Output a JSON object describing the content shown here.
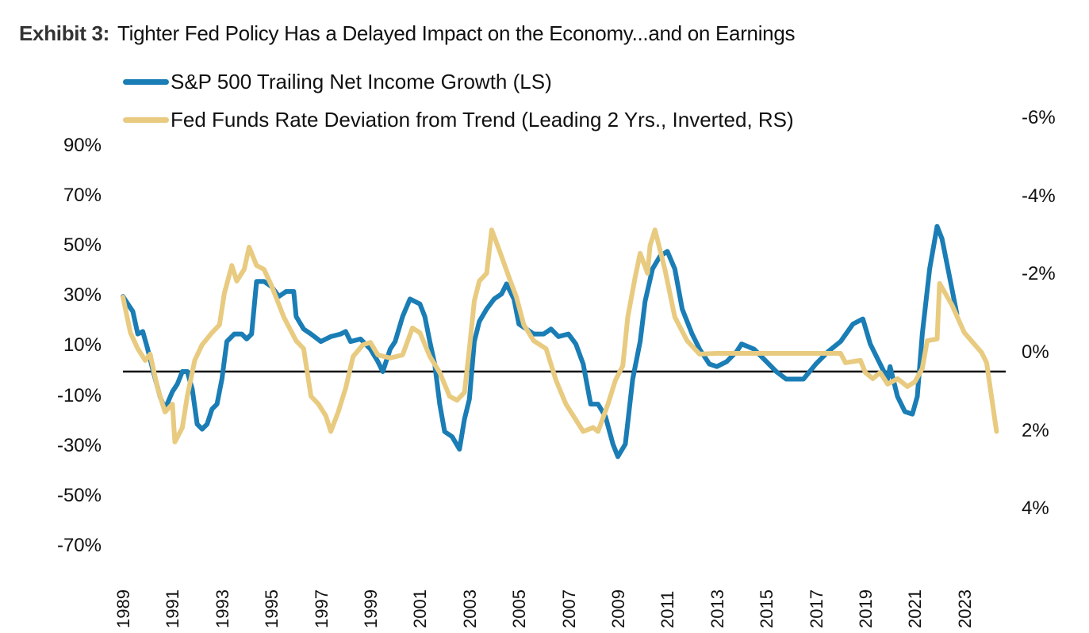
{
  "title": {
    "lead": "Exhibit 3:",
    "text": "Tighter Fed Policy Has a Delayed Impact on the Economy...and on Earnings"
  },
  "colors": {
    "series1": "#1a7db5",
    "series2": "#e8cb80",
    "zero_line": "#000000"
  },
  "chart_data": {
    "type": "line",
    "title": "Exhibit 3: Tighter Fed Policy Has a Delayed Impact on the Economy...and on Earnings",
    "xlabel": "",
    "ylabel_left": "",
    "ylabel_right": "",
    "x_ticks": [
      "1989",
      "1991",
      "1993",
      "1995",
      "1997",
      "1999",
      "2001",
      "2003",
      "2005",
      "2007",
      "2009",
      "2011",
      "2013",
      "2015",
      "2017",
      "2019",
      "2021",
      "2023"
    ],
    "xlim": [
      1989,
      2024.5
    ],
    "ylim_left": [
      -70,
      90
    ],
    "yticks_left": [
      "90%",
      "70%",
      "50%",
      "30%",
      "10%",
      "-10%",
      "-30%",
      "-50%",
      "-70%"
    ],
    "yticks_left_values": [
      90,
      70,
      50,
      30,
      10,
      -10,
      -30,
      -50,
      -70
    ],
    "ylim_right": [
      -6,
      4
    ],
    "right_axis_inverted": true,
    "yticks_right": [
      "-6%",
      "-4%",
      "-2%",
      "0%",
      "2%",
      "4%"
    ],
    "yticks_right_values": [
      -6,
      -4,
      -2,
      0,
      2,
      4
    ],
    "grid": false,
    "zero_line": true,
    "legend_position": "top",
    "series": [
      {
        "name": "S&P 500 Trailing Net Income Growth (LS)",
        "axis": "left",
        "points": [
          [
            1989.0,
            30
          ],
          [
            1989.2,
            27
          ],
          [
            1989.4,
            24
          ],
          [
            1989.6,
            15
          ],
          [
            1989.8,
            16
          ],
          [
            1990.0,
            9
          ],
          [
            1990.2,
            1
          ],
          [
            1990.5,
            -10
          ],
          [
            1990.7,
            -15
          ],
          [
            1991.0,
            -8
          ],
          [
            1991.2,
            -5
          ],
          [
            1991.4,
            0
          ],
          [
            1991.6,
            0
          ],
          [
            1991.8,
            -7
          ],
          [
            1992.0,
            -21
          ],
          [
            1992.2,
            -23
          ],
          [
            1992.4,
            -21
          ],
          [
            1992.6,
            -15
          ],
          [
            1992.8,
            -13
          ],
          [
            1993.0,
            -3
          ],
          [
            1993.2,
            12
          ],
          [
            1993.5,
            15
          ],
          [
            1993.8,
            15
          ],
          [
            1994.0,
            13
          ],
          [
            1994.2,
            15
          ],
          [
            1994.4,
            36
          ],
          [
            1994.7,
            36
          ],
          [
            1995.0,
            34
          ],
          [
            1995.3,
            30
          ],
          [
            1995.6,
            32
          ],
          [
            1995.9,
            32
          ],
          [
            1996.0,
            22
          ],
          [
            1996.3,
            17
          ],
          [
            1996.6,
            15
          ],
          [
            1997.0,
            12
          ],
          [
            1997.4,
            14
          ],
          [
            1997.8,
            15
          ],
          [
            1998.0,
            16
          ],
          [
            1998.2,
            12
          ],
          [
            1998.6,
            13
          ],
          [
            1999.0,
            9
          ],
          [
            1999.3,
            4
          ],
          [
            1999.5,
            0
          ],
          [
            1999.8,
            9
          ],
          [
            2000.0,
            12
          ],
          [
            2000.3,
            22
          ],
          [
            2000.6,
            29
          ],
          [
            2001.0,
            27
          ],
          [
            2001.2,
            22
          ],
          [
            2001.4,
            12
          ],
          [
            2001.6,
            3
          ],
          [
            2001.8,
            -13
          ],
          [
            2002.0,
            -24
          ],
          [
            2002.3,
            -26
          ],
          [
            2002.6,
            -31
          ],
          [
            2002.8,
            -19
          ],
          [
            2003.0,
            -11
          ],
          [
            2003.2,
            12
          ],
          [
            2003.4,
            20
          ],
          [
            2003.7,
            25
          ],
          [
            2004.0,
            29
          ],
          [
            2004.3,
            31
          ],
          [
            2004.5,
            35
          ],
          [
            2004.8,
            29
          ],
          [
            2005.0,
            19
          ],
          [
            2005.3,
            17
          ],
          [
            2005.6,
            15
          ],
          [
            2006.0,
            15
          ],
          [
            2006.3,
            17
          ],
          [
            2006.6,
            14
          ],
          [
            2007.0,
            15
          ],
          [
            2007.3,
            11
          ],
          [
            2007.6,
            3
          ],
          [
            2007.9,
            -13
          ],
          [
            2008.2,
            -13
          ],
          [
            2008.5,
            -18
          ],
          [
            2008.8,
            -29
          ],
          [
            2009.0,
            -34
          ],
          [
            2009.3,
            -29
          ],
          [
            2009.6,
            -3
          ],
          [
            2009.9,
            12
          ],
          [
            2010.1,
            28
          ],
          [
            2010.4,
            41
          ],
          [
            2010.7,
            46
          ],
          [
            2011.0,
            48
          ],
          [
            2011.3,
            41
          ],
          [
            2011.6,
            25
          ],
          [
            2012.0,
            15
          ],
          [
            2012.3,
            9
          ],
          [
            2012.7,
            3
          ],
          [
            2013.0,
            2
          ],
          [
            2013.4,
            4
          ],
          [
            2013.8,
            8
          ],
          [
            2014.0,
            11
          ],
          [
            2014.5,
            9
          ],
          [
            2015.0,
            4
          ],
          [
            2015.4,
            0
          ],
          [
            2015.8,
            -3
          ],
          [
            2016.0,
            -3
          ],
          [
            2016.5,
            -3
          ],
          [
            2017.0,
            3
          ],
          [
            2017.5,
            8
          ],
          [
            2018.0,
            12
          ],
          [
            2018.5,
            19
          ],
          [
            2018.9,
            21
          ],
          [
            2019.2,
            11
          ],
          [
            2019.6,
            3
          ],
          [
            2019.9,
            -3
          ],
          [
            2020.0,
            2
          ],
          [
            2020.3,
            -10
          ],
          [
            2020.6,
            -16
          ],
          [
            2020.9,
            -17
          ],
          [
            2021.1,
            -10
          ],
          [
            2021.3,
            15
          ],
          [
            2021.6,
            41
          ],
          [
            2021.9,
            58
          ],
          [
            2022.1,
            53
          ],
          [
            2022.5,
            33
          ],
          [
            2022.7,
            23
          ]
        ]
      },
      {
        "name": "Fed Funds Rate Deviation from Trend (Leading 2 Yrs., Inverted, RS)",
        "axis": "right",
        "points": [
          [
            1989.0,
            -1.44
          ],
          [
            1989.3,
            -0.53
          ],
          [
            1989.6,
            -0.12
          ],
          [
            1989.9,
            0.18
          ],
          [
            1990.1,
            0.02
          ],
          [
            1990.4,
            0.89
          ],
          [
            1990.7,
            1.5
          ],
          [
            1991.0,
            1.3
          ],
          [
            1991.1,
            2.27
          ],
          [
            1991.4,
            1.9
          ],
          [
            1991.6,
            1.1
          ],
          [
            1991.9,
            0.18
          ],
          [
            1992.2,
            -0.22
          ],
          [
            1992.6,
            -0.53
          ],
          [
            1992.9,
            -0.73
          ],
          [
            1993.1,
            -1.54
          ],
          [
            1993.4,
            -2.25
          ],
          [
            1993.6,
            -1.85
          ],
          [
            1993.9,
            -2.15
          ],
          [
            1994.1,
            -2.72
          ],
          [
            1994.4,
            -2.25
          ],
          [
            1994.7,
            -2.15
          ],
          [
            1995.0,
            -1.74
          ],
          [
            1995.5,
            -0.93
          ],
          [
            1996.0,
            -0.32
          ],
          [
            1996.3,
            -0.12
          ],
          [
            1996.6,
            1.1
          ],
          [
            1996.9,
            1.3
          ],
          [
            1997.2,
            1.6
          ],
          [
            1997.4,
            2.0
          ],
          [
            1997.7,
            1.5
          ],
          [
            1998.0,
            0.89
          ],
          [
            1998.3,
            0.08
          ],
          [
            1998.7,
            -0.22
          ],
          [
            1999.0,
            -0.28
          ],
          [
            1999.3,
            0.04
          ],
          [
            1999.8,
            0.12
          ],
          [
            2000.3,
            0.04
          ],
          [
            2000.7,
            -0.65
          ],
          [
            2001.0,
            -0.53
          ],
          [
            2001.4,
            0.08
          ],
          [
            2001.8,
            0.49
          ],
          [
            2002.2,
            1.1
          ],
          [
            2002.5,
            1.2
          ],
          [
            2002.8,
            1.0
          ],
          [
            2003.0,
            -0.12
          ],
          [
            2003.2,
            -1.34
          ],
          [
            2003.4,
            -1.85
          ],
          [
            2003.7,
            -2.05
          ],
          [
            2003.9,
            -3.16
          ],
          [
            2004.2,
            -2.66
          ],
          [
            2004.6,
            -1.95
          ],
          [
            2004.9,
            -1.44
          ],
          [
            2005.2,
            -0.73
          ],
          [
            2005.6,
            -0.32
          ],
          [
            2006.1,
            -0.12
          ],
          [
            2006.5,
            0.69
          ],
          [
            2006.9,
            1.3
          ],
          [
            2007.3,
            1.7
          ],
          [
            2007.6,
            2.0
          ],
          [
            2008.0,
            1.9
          ],
          [
            2008.2,
            2.0
          ],
          [
            2008.6,
            1.3
          ],
          [
            2008.9,
            0.69
          ],
          [
            2009.2,
            0.32
          ],
          [
            2009.4,
            -0.93
          ],
          [
            2009.7,
            -1.95
          ],
          [
            2009.9,
            -2.56
          ],
          [
            2010.2,
            -2.05
          ],
          [
            2010.3,
            -2.76
          ],
          [
            2010.5,
            -3.16
          ],
          [
            2010.9,
            -2.15
          ],
          [
            2011.3,
            -0.93
          ],
          [
            2011.8,
            -0.32
          ],
          [
            2012.3,
            0.02
          ],
          [
            2013.0,
            0.0
          ],
          [
            2018.0,
            0.0
          ],
          [
            2018.2,
            0.24
          ],
          [
            2018.8,
            0.18
          ],
          [
            2019.0,
            0.49
          ],
          [
            2019.3,
            0.65
          ],
          [
            2019.6,
            0.49
          ],
          [
            2019.9,
            0.79
          ],
          [
            2020.3,
            0.65
          ],
          [
            2020.7,
            0.85
          ],
          [
            2021.0,
            0.73
          ],
          [
            2021.3,
            0.39
          ],
          [
            2021.5,
            -0.32
          ],
          [
            2021.9,
            -0.37
          ],
          [
            2022.0,
            -1.79
          ],
          [
            2022.5,
            -1.24
          ],
          [
            2023.0,
            -0.53
          ],
          [
            2023.7,
            -0.02
          ],
          [
            2023.9,
            0.24
          ],
          [
            2024.3,
            2.0
          ]
        ]
      }
    ]
  }
}
